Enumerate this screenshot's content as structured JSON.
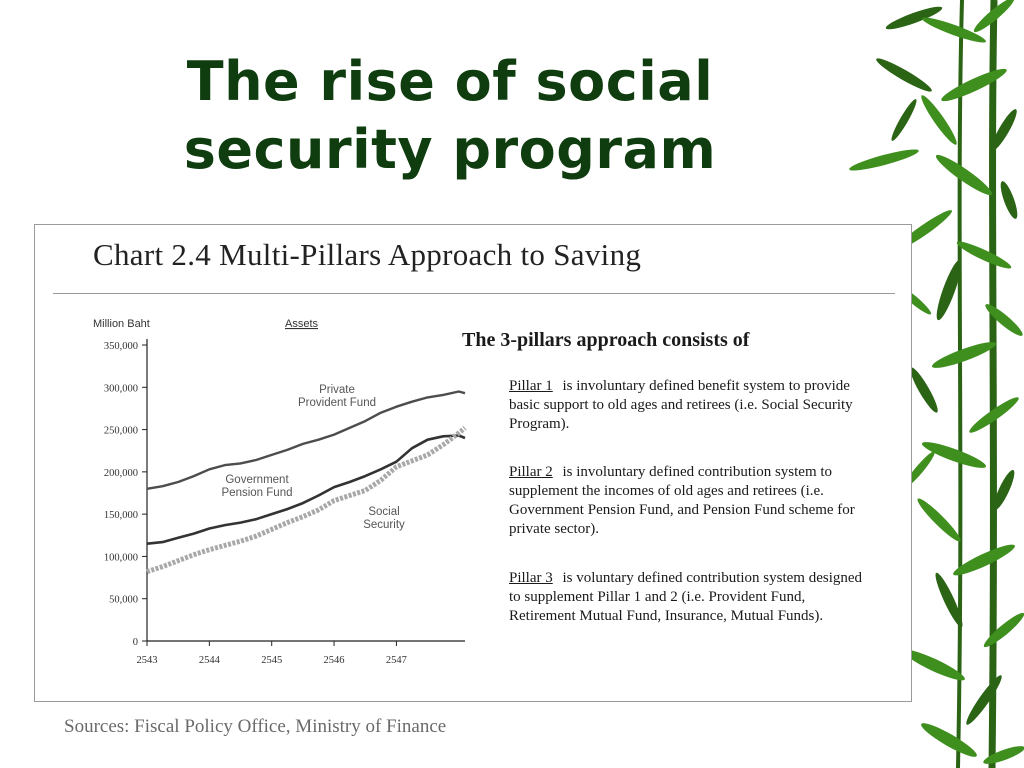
{
  "slide": {
    "title_line1": "The rise of social",
    "title_line2": "security program",
    "source": "Sources: Fiscal Policy Office, Ministry of Finance"
  },
  "panel": {
    "heading": "Chart 2.4  Multi-Pillars Approach to Saving",
    "pillars_heading": "The 3-pillars approach consists of",
    "pillars": [
      {
        "name": "Pillar 1",
        "text": "is involuntary defined benefit system to provide basic support to old ages and retirees (i.e. Social Security Program)."
      },
      {
        "name": "Pillar 2",
        "text": "is involuntary defined contribution system to supplement the incomes of old ages and retirees (i.e. Government Pension Fund, and Pension Fund scheme for private sector)."
      },
      {
        "name": "Pillar 3",
        "text": "is voluntary defined contribution system designed to supplement Pillar 1 and 2 (i.e. Provident Fund, Retirement Mutual Fund, Insurance, Mutual Funds)."
      }
    ]
  },
  "colors": {
    "title": "#0f3d0f",
    "line_private": "#4d4d4d",
    "line_gpf": "#333333",
    "line_social": "#a8a8a8",
    "bamboo_leaf": "#3f8f1f",
    "bamboo_dark": "#2a6414"
  },
  "chart_data": {
    "type": "line",
    "ylabel": "Million Baht",
    "title": "Assets",
    "xlim": [
      2543,
      2548.1
    ],
    "ylim": [
      0,
      350000
    ],
    "x_ticks": [
      2543,
      2544,
      2545,
      2546,
      2547
    ],
    "y_ticks": [
      0,
      50000,
      100000,
      150000,
      200000,
      250000,
      300000,
      350000
    ],
    "y_tick_labels": [
      "0",
      "50,000",
      "100,000",
      "150,000",
      "200,000",
      "250,000",
      "300,000",
      "350,000"
    ],
    "grid": false,
    "legend": "inline labels",
    "series": [
      {
        "name": "Private Provident Fund",
        "x": [
          2543,
          2543.25,
          2543.5,
          2543.75,
          2544,
          2544.25,
          2544.5,
          2544.75,
          2545,
          2545.25,
          2545.5,
          2545.75,
          2546,
          2546.25,
          2546.5,
          2546.75,
          2547,
          2547.25,
          2547.5,
          2547.75,
          2548,
          2548.1
        ],
        "y": [
          180000,
          183000,
          188000,
          195000,
          203000,
          208000,
          210000,
          214000,
          220000,
          226000,
          233000,
          238000,
          244000,
          252000,
          260000,
          270000,
          277000,
          283000,
          288000,
          291000,
          295000,
          293000
        ]
      },
      {
        "name": "Government Pension Fund",
        "x": [
          2543,
          2543.25,
          2543.5,
          2543.75,
          2544,
          2544.25,
          2544.5,
          2544.75,
          2545,
          2545.25,
          2545.5,
          2545.75,
          2546,
          2546.25,
          2546.5,
          2546.75,
          2547,
          2547.25,
          2547.5,
          2547.75,
          2548,
          2548.1
        ],
        "y": [
          115000,
          117000,
          122000,
          127000,
          133000,
          137000,
          140000,
          144000,
          150000,
          156000,
          163000,
          172000,
          182000,
          188000,
          195000,
          203000,
          212000,
          228000,
          238000,
          242000,
          243000,
          240000
        ]
      },
      {
        "name": "Social Security",
        "x": [
          2543,
          2543.25,
          2543.5,
          2543.75,
          2544,
          2544.25,
          2544.5,
          2544.75,
          2545,
          2545.25,
          2545.5,
          2545.75,
          2546,
          2546.25,
          2546.5,
          2546.75,
          2547,
          2547.25,
          2547.5,
          2547.75,
          2548,
          2548.1
        ],
        "y": [
          82000,
          88000,
          95000,
          102000,
          108000,
          113000,
          118000,
          124000,
          132000,
          140000,
          147000,
          155000,
          166000,
          172000,
          178000,
          190000,
          206000,
          213000,
          220000,
          232000,
          246000,
          252000
        ]
      }
    ],
    "annotations": [
      {
        "label_line1": "Private",
        "label_line2": "Provident Fund"
      },
      {
        "label_line1": "Government",
        "label_line2": "Pension Fund"
      },
      {
        "label_line1": "Social",
        "label_line2": "Security"
      }
    ]
  }
}
